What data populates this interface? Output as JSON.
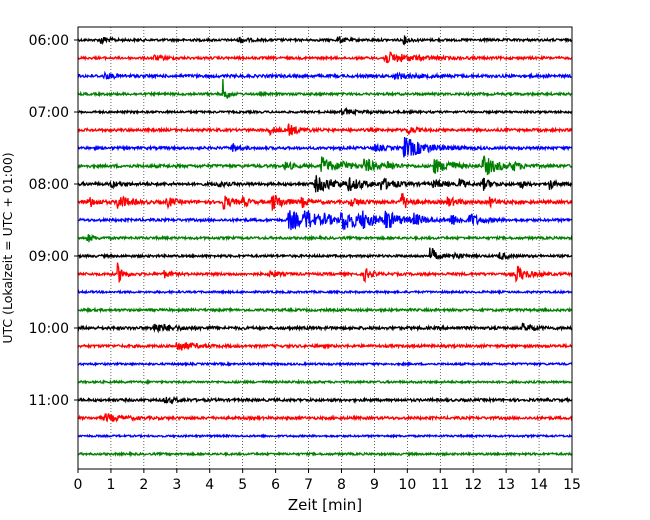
{
  "chart_data": {
    "type": "line",
    "title": "",
    "xlabel": "Zeit  [min]",
    "ylabel": "UTC (Lokalzeit = UTC + 01:00)",
    "xlim": [
      0,
      15
    ],
    "x_ticks": [
      0,
      1,
      2,
      3,
      4,
      5,
      6,
      7,
      8,
      9,
      10,
      11,
      12,
      13,
      14,
      15
    ],
    "y_tick_labels": [
      "06:00",
      "07:00",
      "08:00",
      "09:00",
      "10:00",
      "11:00"
    ],
    "grid": "vertical-dotted",
    "trace_minutes": 15,
    "trace_colors": [
      "#000000",
      "#ff0000",
      "#0000ff",
      "#008000"
    ],
    "traces": [
      {
        "start": "06:00",
        "color": "#000000",
        "noise": 0.18,
        "events": [
          {
            "t": 0.7,
            "amp": 0.6,
            "dur": 0.2
          },
          {
            "t": 4.9,
            "amp": 0.5,
            "dur": 0.2
          },
          {
            "t": 7.9,
            "amp": 0.6,
            "dur": 0.15
          },
          {
            "t": 9.9,
            "amp": 0.6,
            "dur": 0.15
          }
        ]
      },
      {
        "start": "06:15",
        "color": "#ff0000",
        "noise": 0.18,
        "events": [
          {
            "t": 2.3,
            "amp": 0.4,
            "dur": 0.3
          },
          {
            "t": 9.3,
            "amp": 0.9,
            "dur": 0.8
          }
        ]
      },
      {
        "start": "06:30",
        "color": "#0000ff",
        "noise": 0.22,
        "events": [
          {
            "t": 0.8,
            "amp": 0.4,
            "dur": 0.3
          },
          {
            "t": 9.6,
            "amp": 0.4,
            "dur": 0.6
          }
        ]
      },
      {
        "start": "06:45",
        "color": "#008000",
        "noise": 0.18,
        "events": [
          {
            "t": 4.4,
            "amp": 2.2,
            "dur": 0.1
          }
        ]
      },
      {
        "start": "07:00",
        "color": "#000000",
        "noise": 0.16,
        "events": [
          {
            "t": 8.0,
            "amp": 0.4,
            "dur": 0.5
          }
        ]
      },
      {
        "start": "07:15",
        "color": "#ff0000",
        "noise": 0.2,
        "events": [
          {
            "t": 5.8,
            "amp": 0.7,
            "dur": 0.2
          },
          {
            "t": 6.4,
            "amp": 0.8,
            "dur": 0.3
          },
          {
            "t": 10.0,
            "amp": 0.7,
            "dur": 0.2
          }
        ]
      },
      {
        "start": "07:30",
        "color": "#0000ff",
        "noise": 0.2,
        "events": [
          {
            "t": 4.7,
            "amp": 0.7,
            "dur": 0.15
          },
          {
            "t": 9.0,
            "amp": 0.5,
            "dur": 0.3
          },
          {
            "t": 9.9,
            "amp": 1.6,
            "dur": 0.6
          }
        ]
      },
      {
        "start": "07:45",
        "color": "#008000",
        "noise": 0.22,
        "events": [
          {
            "t": 6.3,
            "amp": 0.7,
            "dur": 0.2
          },
          {
            "t": 7.4,
            "amp": 1.5,
            "dur": 0.3
          },
          {
            "t": 8.0,
            "amp": 0.8,
            "dur": 0.2
          },
          {
            "t": 8.7,
            "amp": 1.2,
            "dur": 0.3
          },
          {
            "t": 9.4,
            "amp": 0.6,
            "dur": 0.2
          },
          {
            "t": 10.8,
            "amp": 1.2,
            "dur": 0.3
          },
          {
            "t": 11.2,
            "amp": 0.9,
            "dur": 0.2
          },
          {
            "t": 12.3,
            "amp": 1.6,
            "dur": 0.4
          },
          {
            "t": 13.2,
            "amp": 0.6,
            "dur": 0.2
          }
        ]
      },
      {
        "start": "08:00",
        "color": "#000000",
        "noise": 0.22,
        "events": [
          {
            "t": 1.0,
            "amp": 0.5,
            "dur": 0.2
          },
          {
            "t": 4.2,
            "amp": 0.5,
            "dur": 0.2
          },
          {
            "t": 7.2,
            "amp": 1.2,
            "dur": 0.6
          },
          {
            "t": 8.2,
            "amp": 0.8,
            "dur": 0.4
          },
          {
            "t": 9.2,
            "amp": 0.8,
            "dur": 0.4
          },
          {
            "t": 10.8,
            "amp": 0.6,
            "dur": 0.3
          },
          {
            "t": 11.6,
            "amp": 1.1,
            "dur": 0.1
          },
          {
            "t": 12.3,
            "amp": 0.9,
            "dur": 0.2
          },
          {
            "t": 13.4,
            "amp": 0.7,
            "dur": 0.15
          },
          {
            "t": 14.3,
            "amp": 0.9,
            "dur": 0.15
          }
        ]
      },
      {
        "start": "08:15",
        "color": "#ff0000",
        "noise": 0.24,
        "events": [
          {
            "t": 0.3,
            "amp": 0.9,
            "dur": 0.2
          },
          {
            "t": 1.2,
            "amp": 1.1,
            "dur": 0.3
          },
          {
            "t": 2.7,
            "amp": 0.8,
            "dur": 0.2
          },
          {
            "t": 4.4,
            "amp": 1.2,
            "dur": 0.2
          },
          {
            "t": 5.0,
            "amp": 0.6,
            "dur": 0.2
          },
          {
            "t": 5.9,
            "amp": 1.3,
            "dur": 0.3
          },
          {
            "t": 6.8,
            "amp": 0.7,
            "dur": 0.2
          },
          {
            "t": 8.3,
            "amp": 0.6,
            "dur": 0.3
          },
          {
            "t": 9.8,
            "amp": 1.6,
            "dur": 0.2
          },
          {
            "t": 11.2,
            "amp": 0.7,
            "dur": 0.3
          },
          {
            "t": 12.5,
            "amp": 0.6,
            "dur": 0.2
          }
        ]
      },
      {
        "start": "08:30",
        "color": "#0000ff",
        "noise": 0.2,
        "events": [
          {
            "t": 6.4,
            "amp": 1.6,
            "dur": 0.5
          },
          {
            "t": 6.9,
            "amp": 1.2,
            "dur": 0.3
          },
          {
            "t": 7.5,
            "amp": 0.8,
            "dur": 0.2
          },
          {
            "t": 8.0,
            "amp": 1.6,
            "dur": 0.6
          },
          {
            "t": 8.6,
            "amp": 1.0,
            "dur": 0.3
          },
          {
            "t": 9.3,
            "amp": 1.4,
            "dur": 0.4
          },
          {
            "t": 10.2,
            "amp": 0.8,
            "dur": 0.3
          },
          {
            "t": 11.3,
            "amp": 0.9,
            "dur": 0.3
          },
          {
            "t": 11.9,
            "amp": 0.9,
            "dur": 0.3
          }
        ]
      },
      {
        "start": "08:45",
        "color": "#008000",
        "noise": 0.18,
        "events": [
          {
            "t": 0.3,
            "amp": 0.6,
            "dur": 0.15
          }
        ]
      },
      {
        "start": "09:00",
        "color": "#000000",
        "noise": 0.18,
        "events": [
          {
            "t": 10.7,
            "amp": 1.6,
            "dur": 0.15
          },
          {
            "t": 11.4,
            "amp": 0.6,
            "dur": 0.2
          },
          {
            "t": 12.8,
            "amp": 0.6,
            "dur": 0.2
          }
        ]
      },
      {
        "start": "09:15",
        "color": "#ff0000",
        "noise": 0.2,
        "events": [
          {
            "t": 1.2,
            "amp": 1.6,
            "dur": 0.15
          },
          {
            "t": 2.6,
            "amp": 0.6,
            "dur": 0.15
          },
          {
            "t": 5.8,
            "amp": 0.6,
            "dur": 0.2
          },
          {
            "t": 8.7,
            "amp": 1.1,
            "dur": 0.15
          },
          {
            "t": 13.3,
            "amp": 1.3,
            "dur": 0.3
          }
        ]
      },
      {
        "start": "09:30",
        "color": "#0000ff",
        "noise": 0.15,
        "events": []
      },
      {
        "start": "09:45",
        "color": "#008000",
        "noise": 0.18,
        "events": []
      },
      {
        "start": "10:00",
        "color": "#000000",
        "noise": 0.22,
        "events": [
          {
            "t": 2.3,
            "amp": 0.7,
            "dur": 0.5
          },
          {
            "t": 13.5,
            "amp": 0.6,
            "dur": 0.3
          }
        ]
      },
      {
        "start": "10:15",
        "color": "#ff0000",
        "noise": 0.2,
        "events": [
          {
            "t": 3.0,
            "amp": 0.8,
            "dur": 0.4
          }
        ]
      },
      {
        "start": "10:30",
        "color": "#0000ff",
        "noise": 0.15,
        "events": []
      },
      {
        "start": "10:45",
        "color": "#008000",
        "noise": 0.16,
        "events": []
      },
      {
        "start": "11:00",
        "color": "#000000",
        "noise": 0.2,
        "events": [
          {
            "t": 2.6,
            "amp": 0.4,
            "dur": 0.4
          }
        ]
      },
      {
        "start": "11:15",
        "color": "#ff0000",
        "noise": 0.2,
        "events": [
          {
            "t": 0.8,
            "amp": 0.6,
            "dur": 0.5
          }
        ]
      },
      {
        "start": "11:30",
        "color": "#0000ff",
        "noise": 0.14,
        "events": []
      },
      {
        "start": "11:45",
        "color": "#008000",
        "noise": 0.16,
        "events": []
      }
    ]
  }
}
